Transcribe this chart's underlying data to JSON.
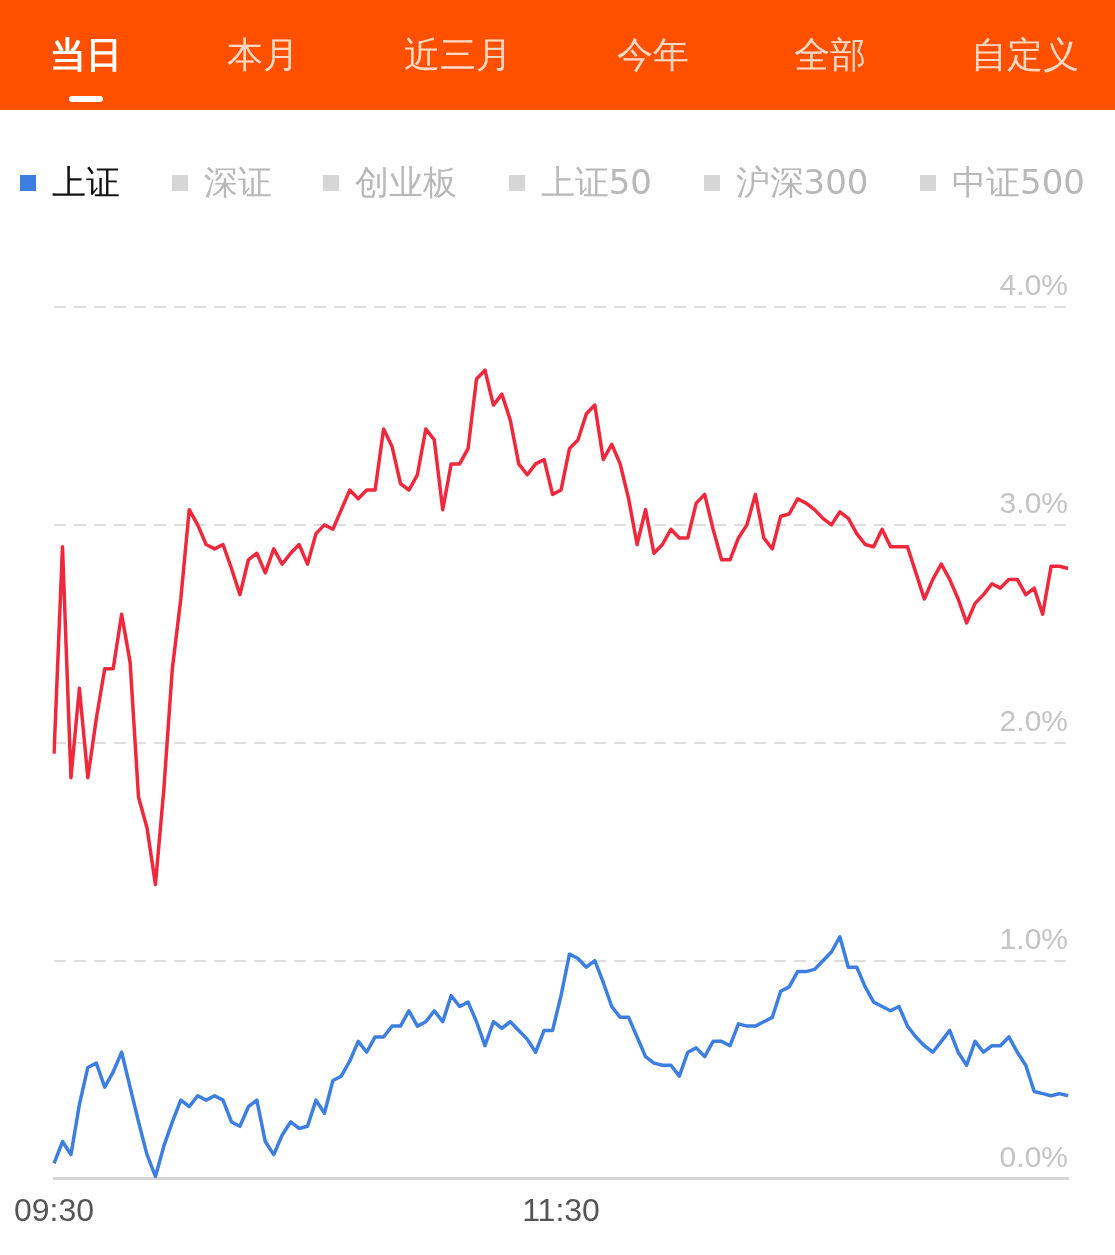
{
  "chart_data": {
    "type": "line",
    "annotations": [
      "当日",
      "本月",
      "近三月",
      "今年",
      "全部",
      "自定义"
    ],
    "legend": "top left",
    "grid": "y",
    "line_style": "solid",
    "categories": [
      "09:30",
      null,
      null,
      null,
      null,
      null,
      null,
      null,
      null,
      null,
      null,
      null,
      null,
      null,
      null,
      null,
      null,
      null,
      null,
      null,
      null,
      null,
      null,
      null,
      null,
      null,
      null,
      null,
      null,
      null,
      null,
      null,
      null,
      null,
      null,
      null,
      null,
      null,
      null,
      null,
      null,
      null,
      null,
      null,
      null,
      null,
      null,
      null,
      null,
      null,
      null,
      null,
      null,
      null,
      null,
      null,
      null,
      null,
      null,
      null,
      "11:30",
      null,
      null,
      null,
      null,
      null,
      null,
      null,
      null,
      null,
      null,
      null,
      null,
      null,
      null,
      null,
      null,
      null,
      null,
      null,
      null,
      null,
      null,
      null,
      null,
      null,
      null,
      null,
      null,
      null,
      null,
      null,
      null,
      null,
      null,
      null,
      null,
      null,
      null,
      null,
      null,
      null,
      null,
      null,
      null,
      null,
      null,
      null,
      null,
      null,
      null,
      null,
      null,
      null,
      null,
      null,
      null,
      null,
      null,
      null,
      null
    ],
    "ylim": [
      0,
      4
    ],
    "yticks": [
      {
        "value": 0,
        "label": "0.0%"
      },
      {
        "value": 1,
        "label": "1.0%"
      },
      {
        "value": 2,
        "label": "2.0%"
      },
      {
        "value": 3,
        "label": "3.0%"
      },
      {
        "value": 4,
        "label": "4.0%"
      }
    ],
    "series": [
      {
        "name": "上证",
        "color": "#3d7fe0",
        "values": [
          0.07,
          0.17,
          0.11,
          0.34,
          0.51,
          0.53,
          0.42,
          0.49,
          0.58,
          0.42,
          0.26,
          0.11,
          0.01,
          0.15,
          0.26,
          0.36,
          0.33,
          0.38,
          0.36,
          0.38,
          0.36,
          0.26,
          0.24,
          0.33,
          0.36,
          0.17,
          0.11,
          0.2,
          0.26,
          0.23,
          0.24,
          0.36,
          0.3,
          0.45,
          0.47,
          0.54,
          0.63,
          0.58,
          0.65,
          0.65,
          0.7,
          0.7,
          0.77,
          0.7,
          0.72,
          0.77,
          0.72,
          0.84,
          0.79,
          0.81,
          0.72,
          0.61,
          0.72,
          0.69,
          0.72,
          0.68,
          0.64,
          0.58,
          0.68,
          0.68,
          0.84,
          1.03,
          1.01,
          0.97,
          1.0,
          0.9,
          0.79,
          0.74,
          0.74,
          0.65,
          0.56,
          0.53,
          0.52,
          0.52,
          0.47,
          0.58,
          0.6,
          0.56,
          0.63,
          0.63,
          0.61,
          0.71,
          0.7,
          0.7,
          0.72,
          0.74,
          0.86,
          0.88,
          0.95,
          0.95,
          0.96,
          1.0,
          1.04,
          1.11,
          0.97,
          0.97,
          0.88,
          0.81,
          0.79,
          0.77,
          0.79,
          0.7,
          0.65,
          0.61,
          0.58,
          0.63,
          0.68,
          0.58,
          0.52,
          0.63,
          0.58,
          0.61,
          0.61,
          0.65,
          0.58,
          0.52,
          0.4,
          0.39,
          0.38,
          0.39,
          0.38
        ]
      },
      {
        "name": "深证",
        "color": "#d6d6d6",
        "values": [
          null,
          null,
          null,
          null,
          null,
          null,
          null,
          null,
          null,
          null,
          null,
          null,
          null,
          null,
          null,
          null,
          null,
          null,
          null,
          null,
          null,
          null,
          null,
          null,
          null,
          null,
          null,
          null,
          null,
          null,
          null,
          null,
          null,
          null,
          null,
          null,
          null,
          null,
          null,
          null,
          null,
          null,
          null,
          null,
          null,
          null,
          null,
          null,
          null,
          null,
          null,
          null,
          null,
          null,
          null,
          null,
          null,
          null,
          null,
          null,
          null,
          null,
          null,
          null,
          null,
          null,
          null,
          null,
          null,
          null,
          null,
          null,
          null,
          null,
          null,
          null,
          null,
          null,
          null,
          null,
          null,
          null,
          null,
          null,
          null,
          null,
          null,
          null,
          null,
          null,
          null,
          null,
          null,
          null,
          null,
          null,
          null,
          null,
          null,
          null,
          null,
          null,
          null,
          null,
          null,
          null,
          null,
          null,
          null,
          null,
          null,
          null,
          null,
          null,
          null,
          null,
          null,
          null,
          null,
          null,
          null
        ]
      },
      {
        "name": "创业板",
        "color": "#d6d6d6",
        "values": [
          null,
          null,
          null,
          null,
          null,
          null,
          null,
          null,
          null,
          null,
          null,
          null,
          null,
          null,
          null,
          null,
          null,
          null,
          null,
          null,
          null,
          null,
          null,
          null,
          null,
          null,
          null,
          null,
          null,
          null,
          null,
          null,
          null,
          null,
          null,
          null,
          null,
          null,
          null,
          null,
          null,
          null,
          null,
          null,
          null,
          null,
          null,
          null,
          null,
          null,
          null,
          null,
          null,
          null,
          null,
          null,
          null,
          null,
          null,
          null,
          null,
          null,
          null,
          null,
          null,
          null,
          null,
          null,
          null,
          null,
          null,
          null,
          null,
          null,
          null,
          null,
          null,
          null,
          null,
          null,
          null,
          null,
          null,
          null,
          null,
          null,
          null,
          null,
          null,
          null,
          null,
          null,
          null,
          null,
          null,
          null,
          null,
          null,
          null,
          null,
          null,
          null,
          null,
          null,
          null,
          null,
          null,
          null,
          null,
          null,
          null,
          null,
          null,
          null,
          null,
          null,
          null,
          null,
          null,
          null,
          null
        ]
      },
      {
        "name": "上证50",
        "color": "#d6d6d6",
        "values": [
          null,
          null,
          null,
          null,
          null,
          null,
          null,
          null,
          null,
          null,
          null,
          null,
          null,
          null,
          null,
          null,
          null,
          null,
          null,
          null,
          null,
          null,
          null,
          null,
          null,
          null,
          null,
          null,
          null,
          null,
          null,
          null,
          null,
          null,
          null,
          null,
          null,
          null,
          null,
          null,
          null,
          null,
          null,
          null,
          null,
          null,
          null,
          null,
          null,
          null,
          null,
          null,
          null,
          null,
          null,
          null,
          null,
          null,
          null,
          null,
          null,
          null,
          null,
          null,
          null,
          null,
          null,
          null,
          null,
          null,
          null,
          null,
          null,
          null,
          null,
          null,
          null,
          null,
          null,
          null,
          null,
          null,
          null,
          null,
          null,
          null,
          null,
          null,
          null,
          null,
          null,
          null,
          null,
          null,
          null,
          null,
          null,
          null,
          null,
          null,
          null,
          null,
          null,
          null,
          null,
          null,
          null,
          null,
          null,
          null,
          null,
          null,
          null,
          null,
          null,
          null,
          null,
          null,
          null,
          null,
          null
        ]
      },
      {
        "name": "沪深300",
        "color": "#d6d6d6",
        "values": [
          null,
          null,
          null,
          null,
          null,
          null,
          null,
          null,
          null,
          null,
          null,
          null,
          null,
          null,
          null,
          null,
          null,
          null,
          null,
          null,
          null,
          null,
          null,
          null,
          null,
          null,
          null,
          null,
          null,
          null,
          null,
          null,
          null,
          null,
          null,
          null,
          null,
          null,
          null,
          null,
          null,
          null,
          null,
          null,
          null,
          null,
          null,
          null,
          null,
          null,
          null,
          null,
          null,
          null,
          null,
          null,
          null,
          null,
          null,
          null,
          null,
          null,
          null,
          null,
          null,
          null,
          null,
          null,
          null,
          null,
          null,
          null,
          null,
          null,
          null,
          null,
          null,
          null,
          null,
          null,
          null,
          null,
          null,
          null,
          null,
          null,
          null,
          null,
          null,
          null,
          null,
          null,
          null,
          null,
          null,
          null,
          null,
          null,
          null,
          null,
          null,
          null,
          null,
          null,
          null,
          null,
          null,
          null,
          null,
          null,
          null,
          null,
          null,
          null,
          null,
          null,
          null,
          null,
          null,
          null,
          null
        ]
      },
      {
        "name": "中证500",
        "color": "#d6d6d6",
        "values": [
          null,
          null,
          null,
          null,
          null,
          null,
          null,
          null,
          null,
          null,
          null,
          null,
          null,
          null,
          null,
          null,
          null,
          null,
          null,
          null,
          null,
          null,
          null,
          null,
          null,
          null,
          null,
          null,
          null,
          null,
          null,
          null,
          null,
          null,
          null,
          null,
          null,
          null,
          null,
          null,
          null,
          null,
          null,
          null,
          null,
          null,
          null,
          null,
          null,
          null,
          null,
          null,
          null,
          null,
          null,
          null,
          null,
          null,
          null,
          null,
          null,
          null,
          null,
          null,
          null,
          null,
          null,
          null,
          null,
          null,
          null,
          null,
          null,
          null,
          null,
          null,
          null,
          null,
          null,
          null,
          null,
          null,
          null,
          null,
          null,
          null,
          null,
          null,
          null,
          null,
          null,
          null,
          null,
          null,
          null,
          null,
          null,
          null,
          null,
          null,
          null,
          null,
          null,
          null,
          null,
          null,
          null,
          null,
          null,
          null,
          null,
          null,
          null,
          null,
          null,
          null,
          null,
          null,
          null,
          null,
          null
        ]
      },
      {
        "color": "#f0283c",
        "values": [
          1.95,
          2.9,
          1.84,
          2.25,
          1.84,
          2.11,
          2.34,
          2.34,
          2.59,
          2.37,
          1.75,
          1.61,
          1.35,
          1.79,
          2.34,
          2.66,
          3.07,
          3.0,
          2.91,
          2.89,
          2.91,
          2.8,
          2.68,
          2.84,
          2.87,
          2.78,
          2.89,
          2.82,
          2.87,
          2.91,
          2.82,
          2.96,
          3.0,
          2.98,
          3.07,
          3.16,
          3.12,
          3.16,
          3.16,
          3.44,
          3.36,
          3.19,
          3.16,
          3.23,
          3.44,
          3.39,
          3.07,
          3.28,
          3.28,
          3.35,
          3.67,
          3.71,
          3.55,
          3.6,
          3.48,
          3.28,
          3.23,
          3.28,
          3.3,
          3.14,
          3.16,
          3.35,
          3.39,
          3.51,
          3.55,
          3.3,
          3.37,
          3.28,
          3.12,
          2.91,
          3.07,
          2.87,
          2.91,
          2.98,
          2.94,
          2.94,
          3.1,
          3.14,
          2.98,
          2.84,
          2.84,
          2.94,
          3.0,
          3.14,
          2.94,
          2.89,
          3.04,
          3.05,
          3.12,
          3.1,
          3.07,
          3.03,
          3.0,
          3.06,
          3.03,
          2.96,
          2.91,
          2.9,
          2.98,
          2.9,
          2.9,
          2.9,
          2.78,
          2.66,
          2.75,
          2.82,
          2.75,
          2.66,
          2.55,
          2.64,
          2.68,
          2.73,
          2.71,
          2.75,
          2.75,
          2.68,
          2.71,
          2.59,
          2.81,
          2.81,
          2.8
        ]
      }
    ]
  }
}
